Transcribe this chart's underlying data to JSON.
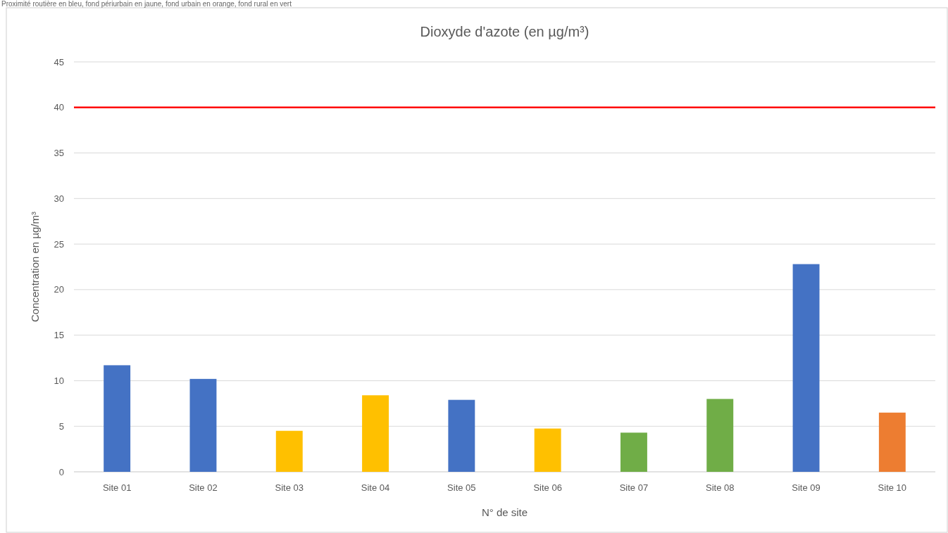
{
  "chart_data": {
    "type": "bar",
    "title": "Dioxyde d'azote (en µg/m³)",
    "xlabel": "N° de site",
    "ylabel": "Concentration en µg/m³",
    "annotations": [
      "Proximité routière en bleu, fond périurbain en jaune, fond urbain en orange, fond rural en vert"
    ],
    "categories": [
      "Site 01",
      "Site 02",
      "Site 03",
      "Site 04",
      "Site 05",
      "Site 06",
      "Site 07",
      "Site 08",
      "Site 09",
      "Site 10"
    ],
    "values": [
      11.7,
      10.2,
      4.5,
      8.4,
      7.9,
      4.75,
      4.3,
      8.0,
      22.8,
      6.5
    ],
    "colors": [
      "#4472c4",
      "#4472c4",
      "#ffc000",
      "#ffc000",
      "#4472c4",
      "#ffc000",
      "#70ad47",
      "#70ad47",
      "#4472c4",
      "#ed7d31"
    ],
    "ylim": [
      0,
      45
    ],
    "yticks": [
      0,
      5,
      10,
      15,
      20,
      25,
      30,
      35,
      40,
      45
    ],
    "grid": "y",
    "ref_lines": [
      {
        "axis": "y",
        "value": 40,
        "color": "#ff0000"
      }
    ]
  }
}
